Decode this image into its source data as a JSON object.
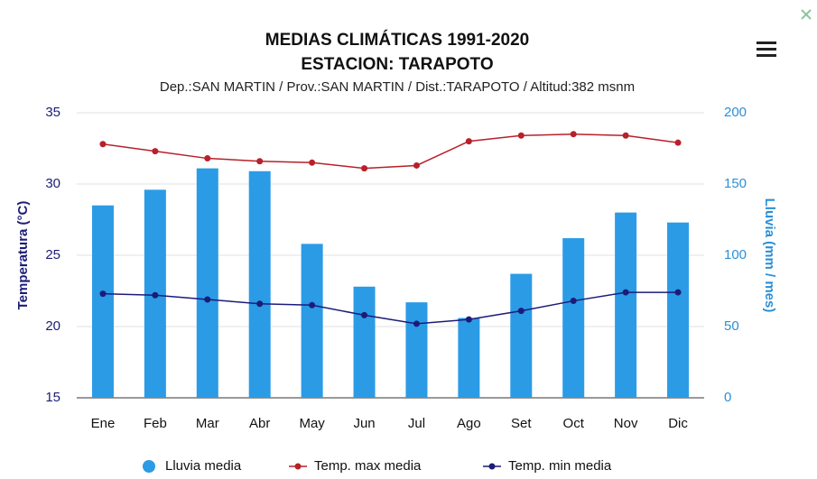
{
  "chart_data": {
    "type": "bar-line",
    "title": "MEDIAS CLIMÁTICAS 1991-2020",
    "subtitle_line": "ESTACION: TARAPOTO",
    "subtitle": "Dep.:SAN MARTIN / Prov.:SAN MARTIN / Dist.:TARAPOTO / Altitud:382 msnm",
    "y_label": "Temperatura (°C)",
    "y2_label": "Lluvia (mm / mes)",
    "categories": [
      "Ene",
      "Feb",
      "Mar",
      "Abr",
      "May",
      "Jun",
      "Jul",
      "Ago",
      "Set",
      "Oct",
      "Nov",
      "Dic"
    ],
    "series": [
      {
        "name": "Lluvia media",
        "color": "#2b9be6",
        "kind": "bar",
        "axis": "y2",
        "values": [
          135,
          146,
          161,
          159,
          108,
          78,
          67,
          56,
          87,
          112,
          130,
          123
        ]
      },
      {
        "name": "Temp. max media",
        "color": "#b8202a",
        "kind": "line",
        "values": [
          32.8,
          32.3,
          31.8,
          31.6,
          31.5,
          31.1,
          31.3,
          33.0,
          33.4,
          33.5,
          33.4,
          32.9
        ]
      },
      {
        "name": "Temp. min media",
        "color": "#1c1c78",
        "kind": "line",
        "values": [
          22.3,
          22.2,
          21.9,
          21.6,
          21.5,
          20.8,
          20.2,
          20.5,
          21.1,
          21.8,
          22.4,
          22.4
        ]
      }
    ],
    "ylim": [
      15,
      35
    ],
    "yticks": [
      15,
      20,
      25,
      30,
      35
    ],
    "y2lim": [
      0,
      200
    ],
    "y2ticks": [
      0,
      50,
      100,
      150,
      200
    ],
    "grid": true,
    "legend": "bottom"
  }
}
